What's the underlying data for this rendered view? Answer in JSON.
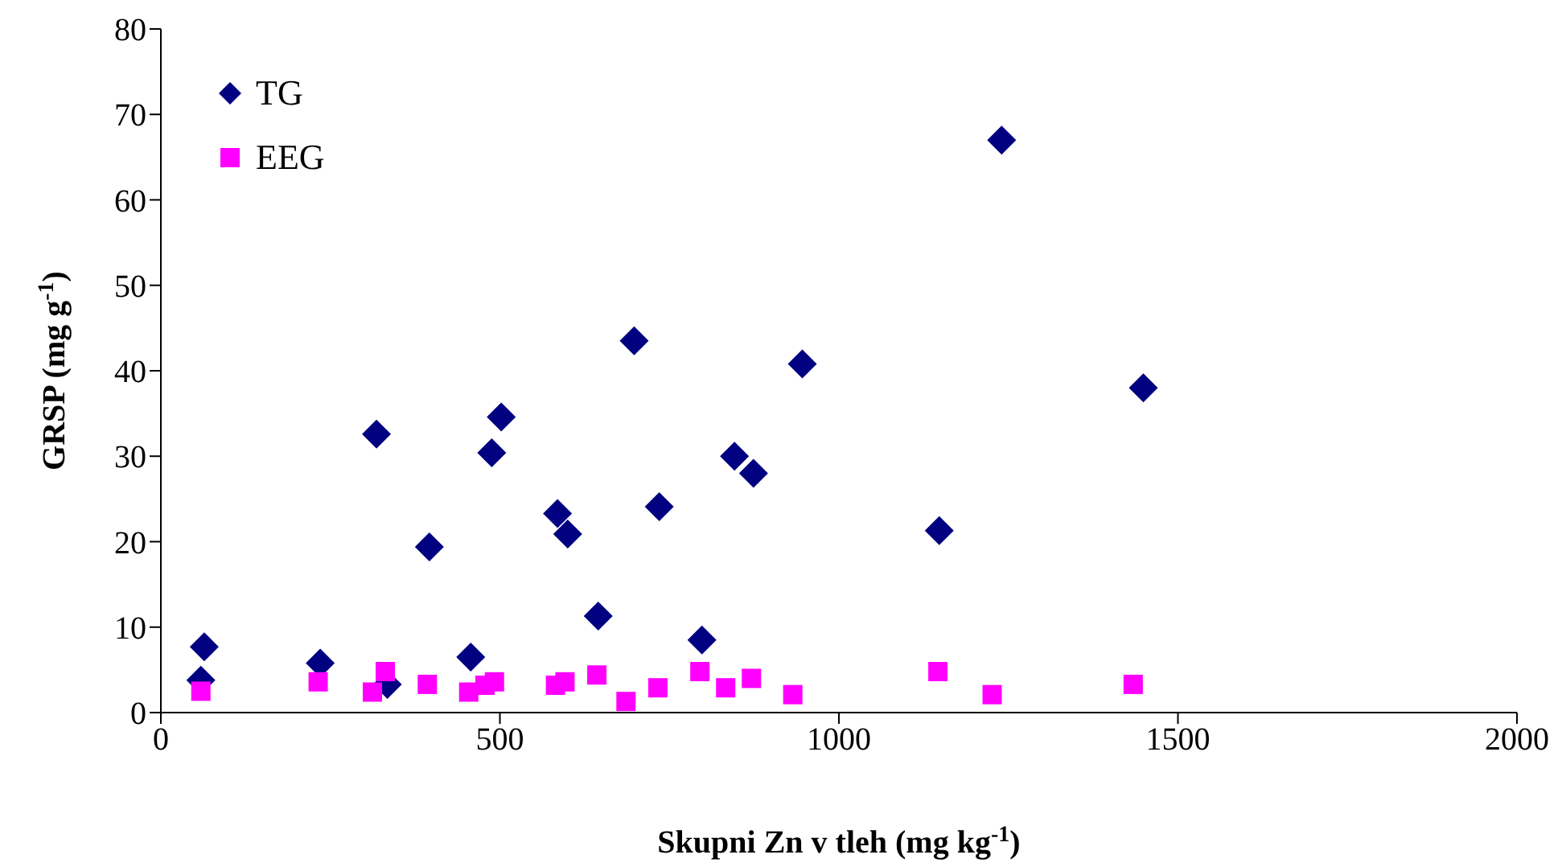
{
  "chart_data": {
    "type": "scatter",
    "xlabel": "Skupni Zn v tleh (mg kg$^{-1}$)",
    "ylabel": "GRSP (mg g$^{-1}$)",
    "xlim": [
      0,
      2000
    ],
    "xticks": [
      0,
      500,
      1000,
      1500,
      2000
    ],
    "ylim": [
      0,
      80
    ],
    "yticks": [
      0,
      10,
      20,
      30,
      40,
      50,
      60,
      70,
      80
    ],
    "grid": false,
    "legend": "top left",
    "series": [
      {
        "name": "TG",
        "color": "#000080",
        "marker": "diamond",
        "x": [
          64,
          59,
          235,
          334,
          396,
          457,
          585,
          600,
          645,
          735,
          798,
          874,
          318,
          488,
          502,
          698,
          846,
          946,
          1240,
          1449,
          1148
        ],
        "values": [
          7.7,
          3.8,
          5.8,
          3.3,
          19.4,
          6.5,
          23.3,
          20.9,
          11.3,
          24.1,
          8.5,
          28.0,
          32.6,
          30.4,
          34.6,
          43.5,
          30,
          40.8,
          67,
          38,
          21.3
        ]
      },
      {
        "name": "EEG",
        "color": "#ff00ff",
        "marker": "square",
        "x": [
          59,
          232,
          312,
          331,
          393,
          454,
          478,
          492,
          582,
          596,
          643,
          686,
          733,
          795,
          833,
          871,
          932,
          1146,
          1226,
          1434
        ],
        "values": [
          2.5,
          3.6,
          2.4,
          4.8,
          3.3,
          2.4,
          3.2,
          3.6,
          3.2,
          3.6,
          4.4,
          1.3,
          2.9,
          4.8,
          2.9,
          4.0,
          2.1,
          4.8,
          2.1,
          3.3
        ]
      }
    ]
  }
}
